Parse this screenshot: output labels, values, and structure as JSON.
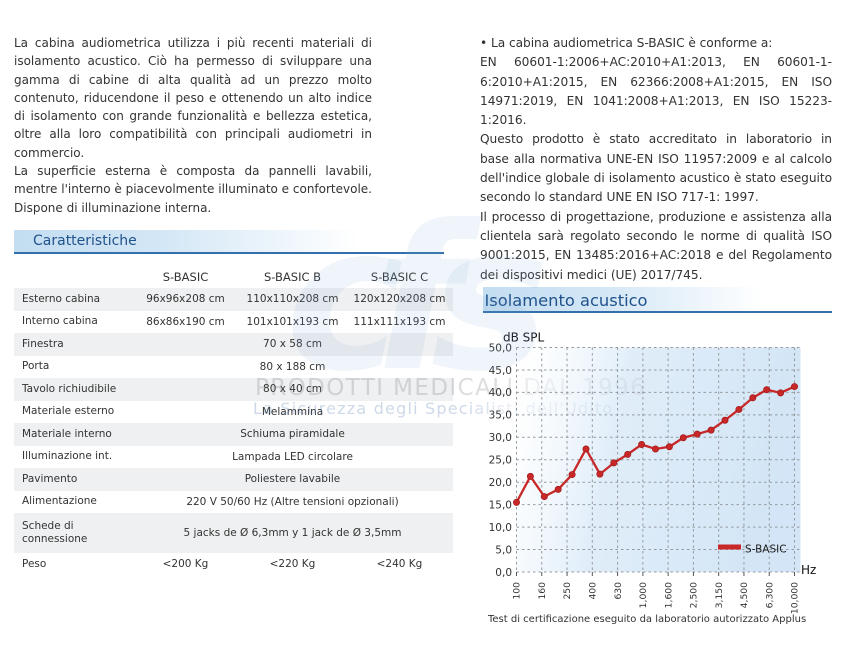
{
  "page": {
    "intro_lines": [
      {
        "t": "La cabina audiometrica utilizza i più recenti materiali di",
        "j": 1
      },
      {
        "t": "isolamento acustico. Ciò ha permesso di sviluppare una",
        "j": 1
      },
      {
        "t": "gamma di cabine di alta qualità ad un prezzo molto",
        "j": 1
      },
      {
        "t": "contenuto, riducendone il peso e ottenendo un alto indice",
        "j": 1
      },
      {
        "t": "di isolamento con grande funzionalità e bellezza estetica,",
        "j": 1
      },
      {
        "t": "oltre alla loro compatibilità con principali audiometri in",
        "j": 1
      },
      {
        "t": "commercio.",
        "j": 0
      },
      {
        "t": "La superficie esterna è composta da pannelli lavabili,",
        "j": 1
      },
      {
        "t": "mentre l'interno è piacevolmente illuminato e confortevole.",
        "j": 1
      },
      {
        "t": "Dispone di illuminazione interna.",
        "j": 0
      }
    ],
    "conformity_lines": [
      {
        "t": "• La cabina audiometrica S-BASIC è conforme a:",
        "j": 0
      },
      {
        "t": "EN 60601-1:2006+AC:2010+A1:2013, EN 60601-1-",
        "j": 1
      },
      {
        "t": "6:2010+A1:2015, EN 62366:2008+A1:2015, EN ISO",
        "j": 1
      },
      {
        "t": "14971:2019, EN 1041:2008+A1:2013, EN ISO 15223-",
        "j": 1
      },
      {
        "t": "1:2016.",
        "j": 0
      },
      {
        "t": "Questo prodotto è stato accreditato in laboratorio in",
        "j": 1
      },
      {
        "t": "base alla normativa UNE-EN ISO 11957:2009 e al calcolo",
        "j": 1
      },
      {
        "t": "dell'indice globale di isolamento acustico è stato eseguito",
        "j": 1
      },
      {
        "t": "secondo lo standard UNE EN ISO 717-1: 1997.",
        "j": 0
      },
      {
        "t": "Il processo di progettazione, produzione e assistenza alla",
        "j": 1
      },
      {
        "t": "clientela sarà regolato secondo le norme di qualità ISO",
        "j": 1
      },
      {
        "t": "9001:2015, EN 13485:2016+AC:2018 e del Regolamento",
        "j": 1
      },
      {
        "t": "dei dispositivi medici (UE) 2017/745.",
        "j": 0
      }
    ],
    "sections": {
      "caratteristiche": "Caratteristiche",
      "isolamento": "Isolamento acustico"
    },
    "table": {
      "columns": [
        "",
        "S-BASIC",
        "S-BASIC B",
        "S-BASIC C"
      ],
      "rows": [
        {
          "label": "Esterno cabina",
          "values": [
            "96x96x208 cm",
            "110x110x208 cm",
            "120x120x208 cm"
          ],
          "shaded": true
        },
        {
          "label": "Interno cabina",
          "values": [
            "86x86x190 cm",
            "101x101x193 cm",
            "111x111x193 cm"
          ],
          "shaded": false
        },
        {
          "label": "Finestra",
          "span": "70 x 58 cm",
          "shaded": true
        },
        {
          "label": "Porta",
          "span": "80 x 188 cm",
          "shaded": false
        },
        {
          "label": "Tavolo richiudibile",
          "span": "80 x 40 cm",
          "shaded": true
        },
        {
          "label": "Materiale esterno",
          "span": "Melammina",
          "shaded": false
        },
        {
          "label": "Materiale interno",
          "span": "Schiuma piramidale",
          "shaded": true
        },
        {
          "label": "Illuminazione int.",
          "span": "Lampada LED circolare",
          "shaded": false
        },
        {
          "label": "Pavimento",
          "span": "Poliestere lavabile",
          "shaded": true
        },
        {
          "label": "Alimentazione",
          "span": "220 V 50/60 Hz (Altre tensioni opzionali)",
          "shaded": false
        },
        {
          "label": "Schede di connessione",
          "span": "5 jacks de Ø 6,3mm y 1 jack de Ø 3,5mm",
          "shaded": true
        },
        {
          "label": "Peso",
          "values": [
            "<200 Kg",
            "<220 Kg",
            "<240 Kg"
          ],
          "shaded": false
        }
      ]
    },
    "watermark": {
      "logo": "cfs",
      "line1": "PRODOTTI MEDICALI DAL 1996",
      "line2": "La Sicurezza degli Specialisti dell'Udito"
    },
    "chart_data": {
      "type": "line",
      "title": "Isolamento acustico",
      "ylabel": "dB SPL",
      "xlabel": "Hz",
      "ylim": [
        0,
        50
      ],
      "ytick_step": 5,
      "ytick_labels": [
        "0,0",
        "5,0",
        "10,0",
        "15,0",
        "20,0",
        "25,0",
        "30,0",
        "35,0",
        "40,0",
        "45,0",
        "50,0"
      ],
      "xtick_labels": [
        "100",
        "160",
        "250",
        "400",
        "630",
        "1,000",
        "1,600",
        "2,500",
        "3,150",
        "4,500",
        "6,300",
        "10,000"
      ],
      "grid": "dashed",
      "legend": [
        {
          "name": "S-BASIC",
          "color": "#c82828"
        }
      ],
      "series": [
        {
          "name": "S-BASIC",
          "values": [
            15.5,
            21.3,
            16.8,
            18.4,
            21.7,
            27.4,
            21.8,
            24.3,
            26.2,
            28.4,
            27.4,
            27.9,
            29.9,
            30.7,
            31.6,
            33.8,
            36.2,
            38.8,
            40.6,
            39.9,
            41.3
          ]
        }
      ],
      "caption": "Test di certificazione eseguito da laboratorio autorizzato Applus"
    },
    "colors": {
      "accent_blue": "#20528b",
      "underline_blue": "#3470ab",
      "band_blue": "#c3ddf1",
      "series_red": "#c82828",
      "shaded_row": "#eff0f1"
    }
  }
}
